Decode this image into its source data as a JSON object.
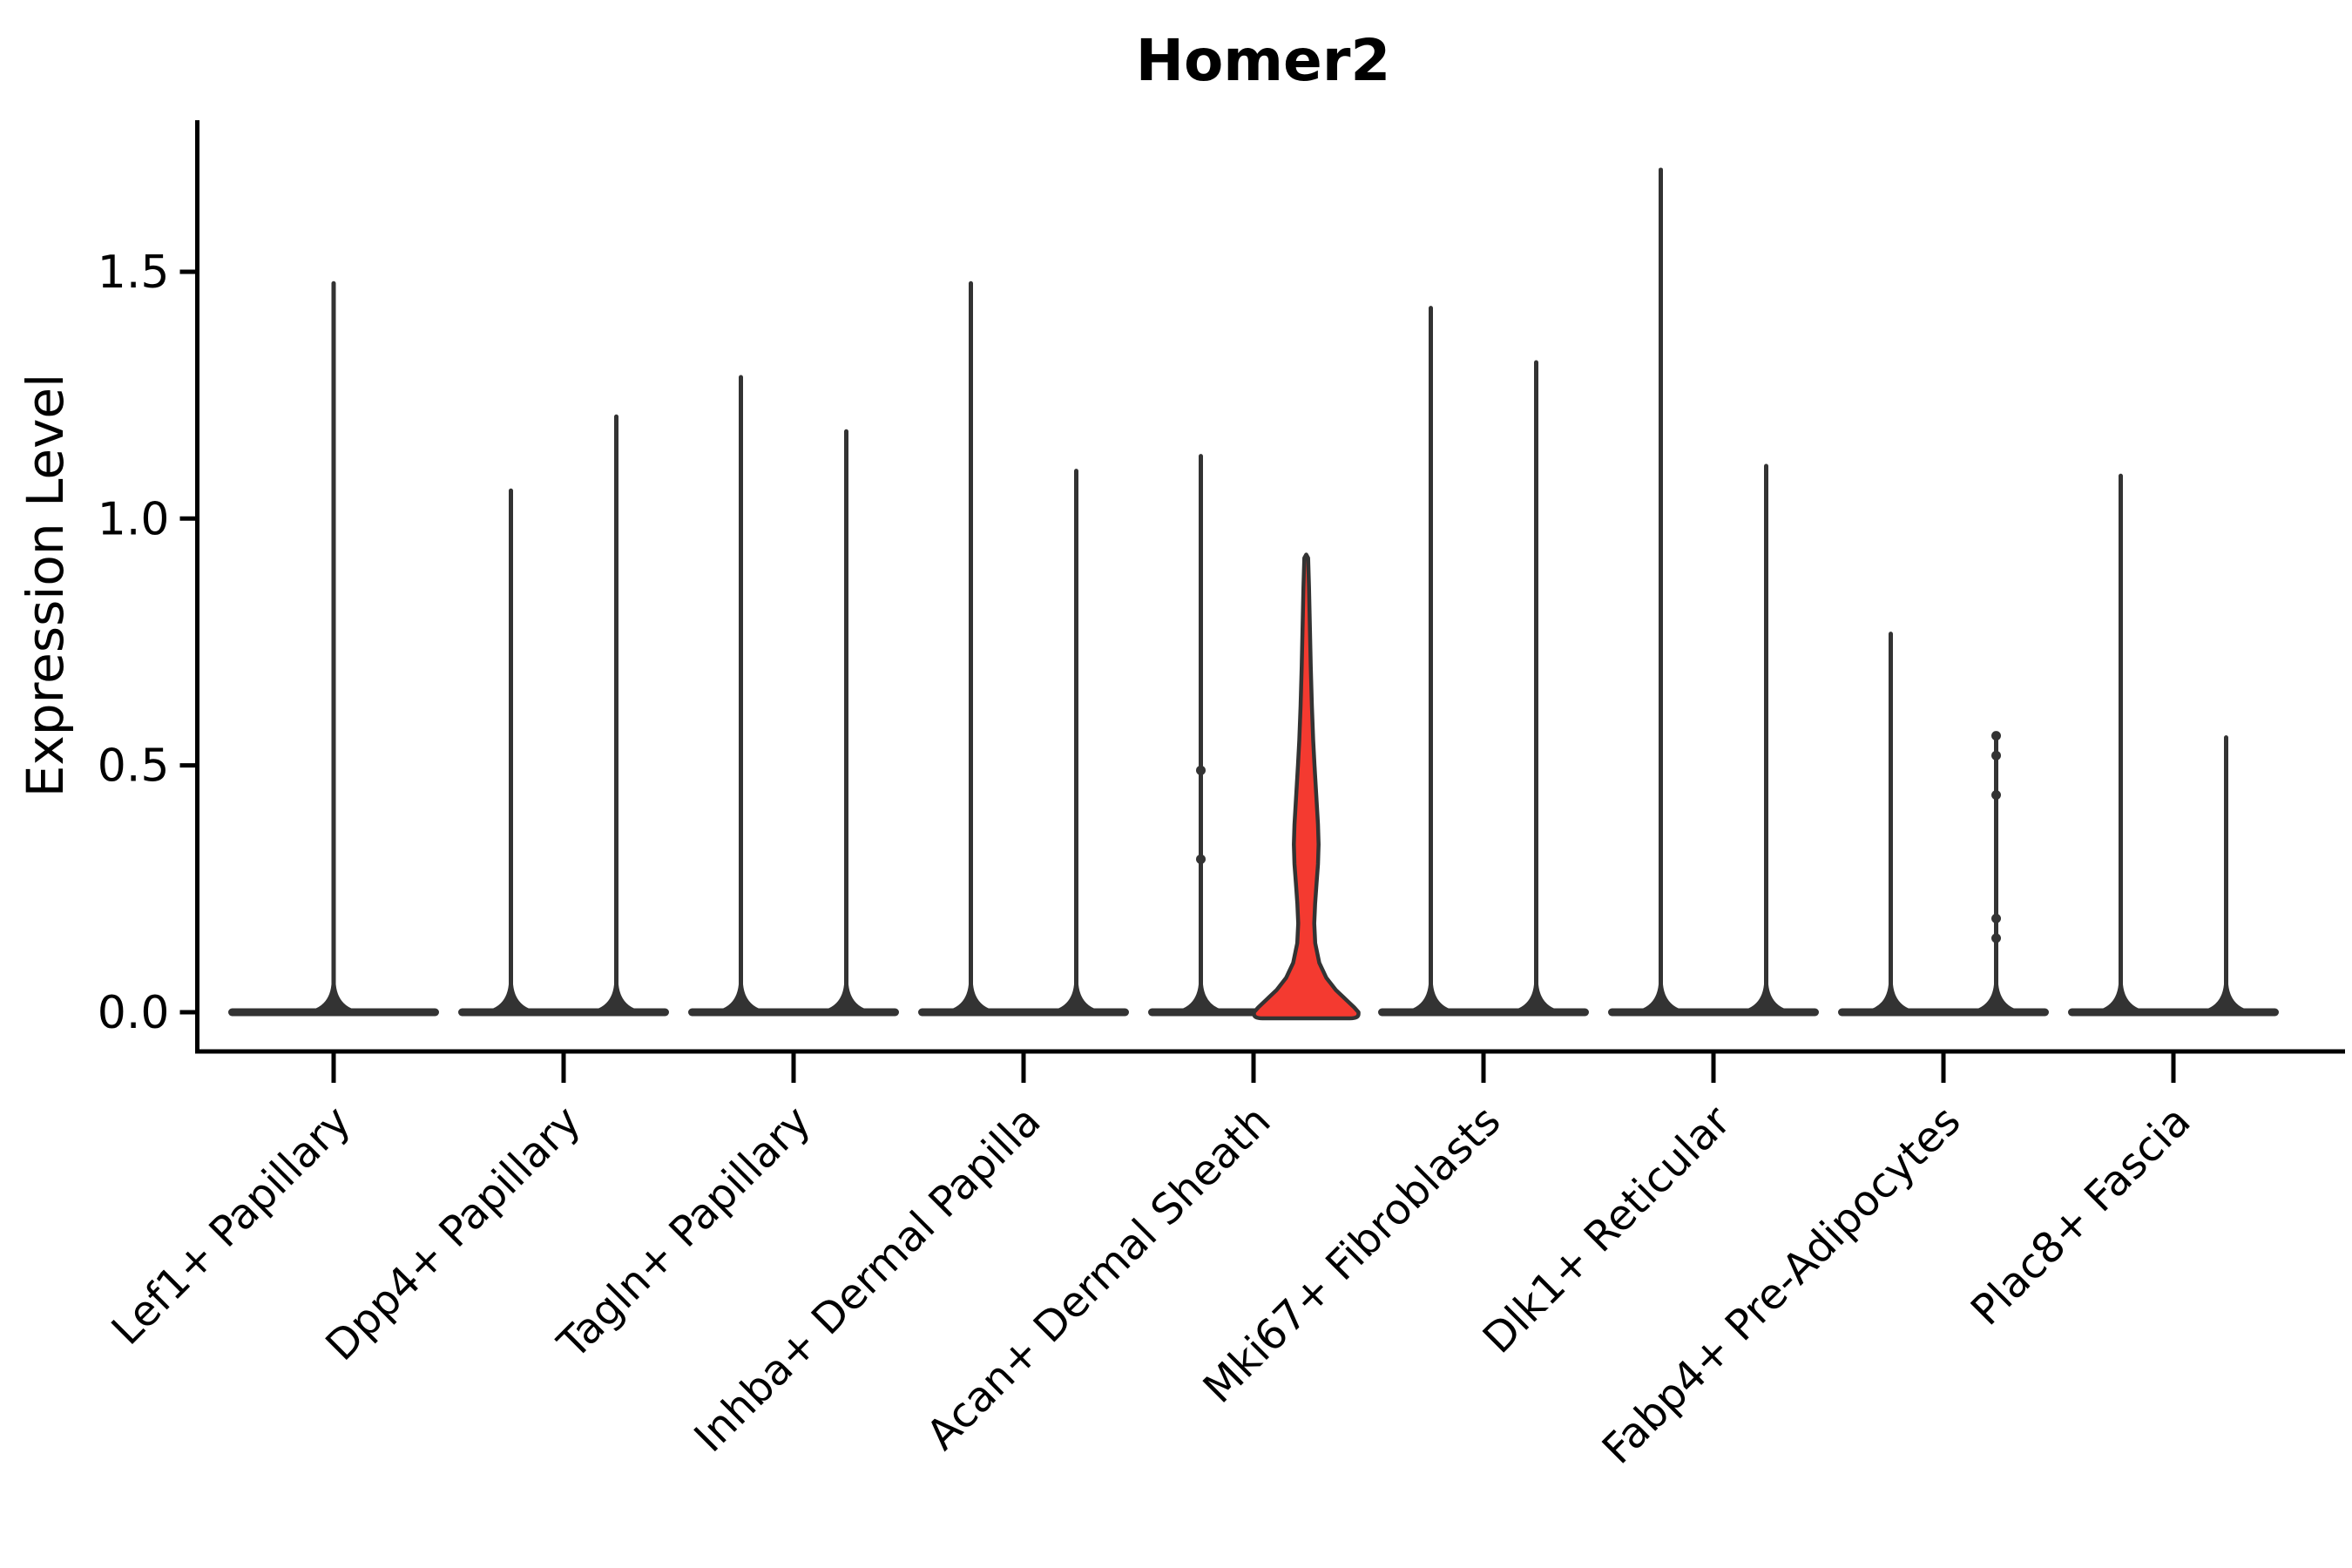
{
  "title": "Homer2",
  "axes": {
    "ylabel": "Expression Level",
    "ytick_labels": [
      "0.0",
      "0.5",
      "1.0",
      "1.5"
    ]
  },
  "chart_data": {
    "type": "violin",
    "title": "Homer2",
    "xlabel": "",
    "ylabel": "Expression Level",
    "yticks": [
      0.0,
      0.5,
      1.0,
      1.5
    ],
    "ylim": [
      -0.08,
      1.81
    ],
    "grid": false,
    "legend": "none",
    "outline_color": "#333333",
    "highlight_color": "#f43a30",
    "categories": [
      "Lef1+ Papillary",
      "Dpp4+ Papillary",
      "Tagln+ Papillary",
      "Inhba+ Dermal Papilla",
      "Acan+ Dermal Sheath",
      "Mki67+ Fibroblasts",
      "Dlk1+ Reticular",
      "Fabp4+ Pre-Adipocytes",
      "Plac8+ Fascia"
    ],
    "violins": [
      {
        "category": "Lef1+ Papillary",
        "position": "center",
        "max_expression": 1.48,
        "filled": false,
        "dots": []
      },
      {
        "category": "Dpp4+ Papillary",
        "position": "left",
        "max_expression": 1.06,
        "filled": false,
        "dots": []
      },
      {
        "category": "Dpp4+ Papillary",
        "position": "right",
        "max_expression": 1.21,
        "filled": false,
        "dots": []
      },
      {
        "category": "Tagln+ Papillary",
        "position": "left",
        "max_expression": 1.29,
        "filled": false,
        "dots": []
      },
      {
        "category": "Tagln+ Papillary",
        "position": "right",
        "max_expression": 1.18,
        "filled": false,
        "dots": []
      },
      {
        "category": "Inhba+ Dermal Papilla",
        "position": "left",
        "max_expression": 1.48,
        "filled": false,
        "dots": []
      },
      {
        "category": "Inhba+ Dermal Papilla",
        "position": "right",
        "max_expression": 1.1,
        "filled": false,
        "dots": []
      },
      {
        "category": "Acan+ Dermal Sheath",
        "position": "left",
        "max_expression": 1.13,
        "filled": false,
        "dots": [
          0.49,
          0.31
        ]
      },
      {
        "category": "Acan+ Dermal Sheath",
        "position": "right",
        "max_expression": 0.92,
        "filled": true,
        "fill_color": "#f43a30",
        "kde_profile": [
          [
            0.92,
            2.2
          ],
          [
            0.86,
            3.2
          ],
          [
            0.78,
            4.2
          ],
          [
            0.7,
            5.2
          ],
          [
            0.62,
            6.5
          ],
          [
            0.55,
            8.0
          ],
          [
            0.5,
            9.5
          ],
          [
            0.44,
            11.5
          ],
          [
            0.38,
            13.5
          ],
          [
            0.34,
            14.2
          ],
          [
            0.3,
            13.5
          ],
          [
            0.26,
            11.8
          ],
          [
            0.22,
            10.2
          ],
          [
            0.18,
            9.2
          ],
          [
            0.14,
            10.3
          ],
          [
            0.1,
            15.0
          ],
          [
            0.07,
            23.0
          ],
          [
            0.045,
            34.0
          ],
          [
            0.025,
            46.0
          ],
          [
            0.01,
            55.0
          ],
          [
            0.0,
            60.0
          ]
        ],
        "dots": []
      },
      {
        "category": "Mki67+ Fibroblasts",
        "position": "left",
        "max_expression": 1.43,
        "filled": false,
        "dots": []
      },
      {
        "category": "Mki67+ Fibroblasts",
        "position": "right",
        "max_expression": 1.32,
        "filled": false,
        "dots": []
      },
      {
        "category": "Dlk1+ Reticular",
        "position": "left",
        "max_expression": 1.71,
        "filled": false,
        "dots": []
      },
      {
        "category": "Dlk1+ Reticular",
        "position": "right",
        "max_expression": 1.11,
        "filled": false,
        "dots": []
      },
      {
        "category": "Fabp4+ Pre-Adipocytes",
        "position": "left",
        "max_expression": 0.77,
        "filled": false,
        "dots": []
      },
      {
        "category": "Fabp4+ Pre-Adipocytes",
        "position": "right",
        "max_expression": 0.56,
        "filled": false,
        "dots": [
          0.56,
          0.52,
          0.44,
          0.19,
          0.15
        ]
      },
      {
        "category": "Plac8+ Fascia",
        "position": "left",
        "max_expression": 1.09,
        "filled": false,
        "dots": []
      },
      {
        "category": "Plac8+ Fascia",
        "position": "right",
        "max_expression": 0.56,
        "filled": false,
        "dots": []
      }
    ]
  }
}
